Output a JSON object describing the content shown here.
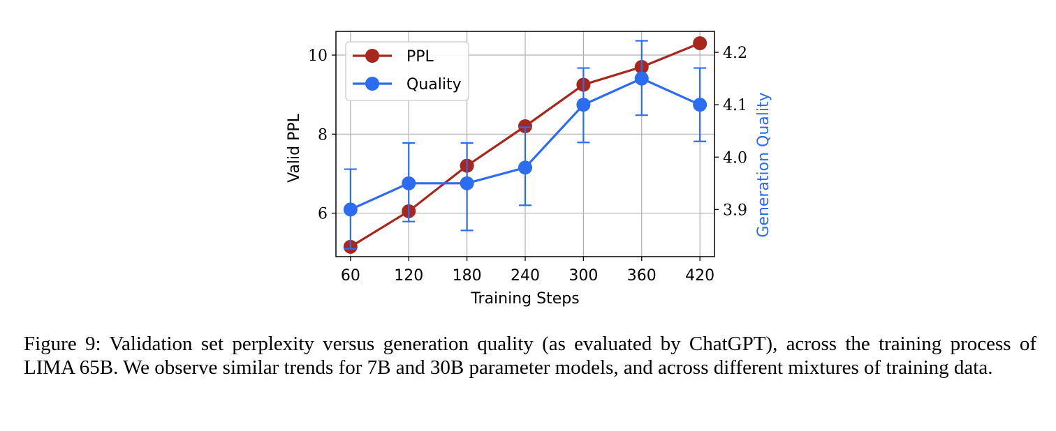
{
  "chart_data": {
    "type": "line",
    "x": [
      60,
      120,
      180,
      240,
      300,
      360,
      420
    ],
    "xlabel": "Training Steps",
    "xticks": [
      "60",
      "120",
      "180",
      "240",
      "300",
      "360",
      "420"
    ],
    "xlim": [
      45,
      435
    ],
    "grid": true,
    "legend_position": "top-left",
    "left_axis": {
      "label": "Valid PPL",
      "ticks": [
        "6",
        "8",
        "10"
      ],
      "tick_values": [
        6,
        8,
        10
      ],
      "lim": [
        4.9,
        10.6
      ]
    },
    "right_axis": {
      "label": "Generation Quality",
      "ticks": [
        "3.9",
        "4.0",
        "4.1",
        "4.2"
      ],
      "tick_values": [
        3.9,
        4.0,
        4.1,
        4.2
      ],
      "lim": [
        3.81,
        4.24
      ],
      "color": "#2b6cf0"
    },
    "series": [
      {
        "name": "PPL",
        "axis": "left",
        "color": "#a8271d",
        "values": [
          5.15,
          6.05,
          7.2,
          8.2,
          9.25,
          9.7,
          10.3
        ]
      },
      {
        "name": "Quality",
        "axis": "right",
        "color": "#2b6cf0",
        "values": [
          3.9,
          3.95,
          3.95,
          3.98,
          4.1,
          4.15,
          4.1
        ],
        "error_low": [
          3.825,
          3.877,
          3.86,
          3.908,
          4.028,
          4.08,
          4.03
        ],
        "error_high": [
          3.977,
          4.027,
          4.027,
          4.057,
          4.17,
          4.222,
          4.17
        ]
      }
    ]
  },
  "caption": "Figure 9: Validation set perplexity versus generation quality (as evaluated by ChatGPT), across the training process of LIMA 65B. We observe similar trends for 7B and 30B parameter models, and across different mixtures of training data."
}
